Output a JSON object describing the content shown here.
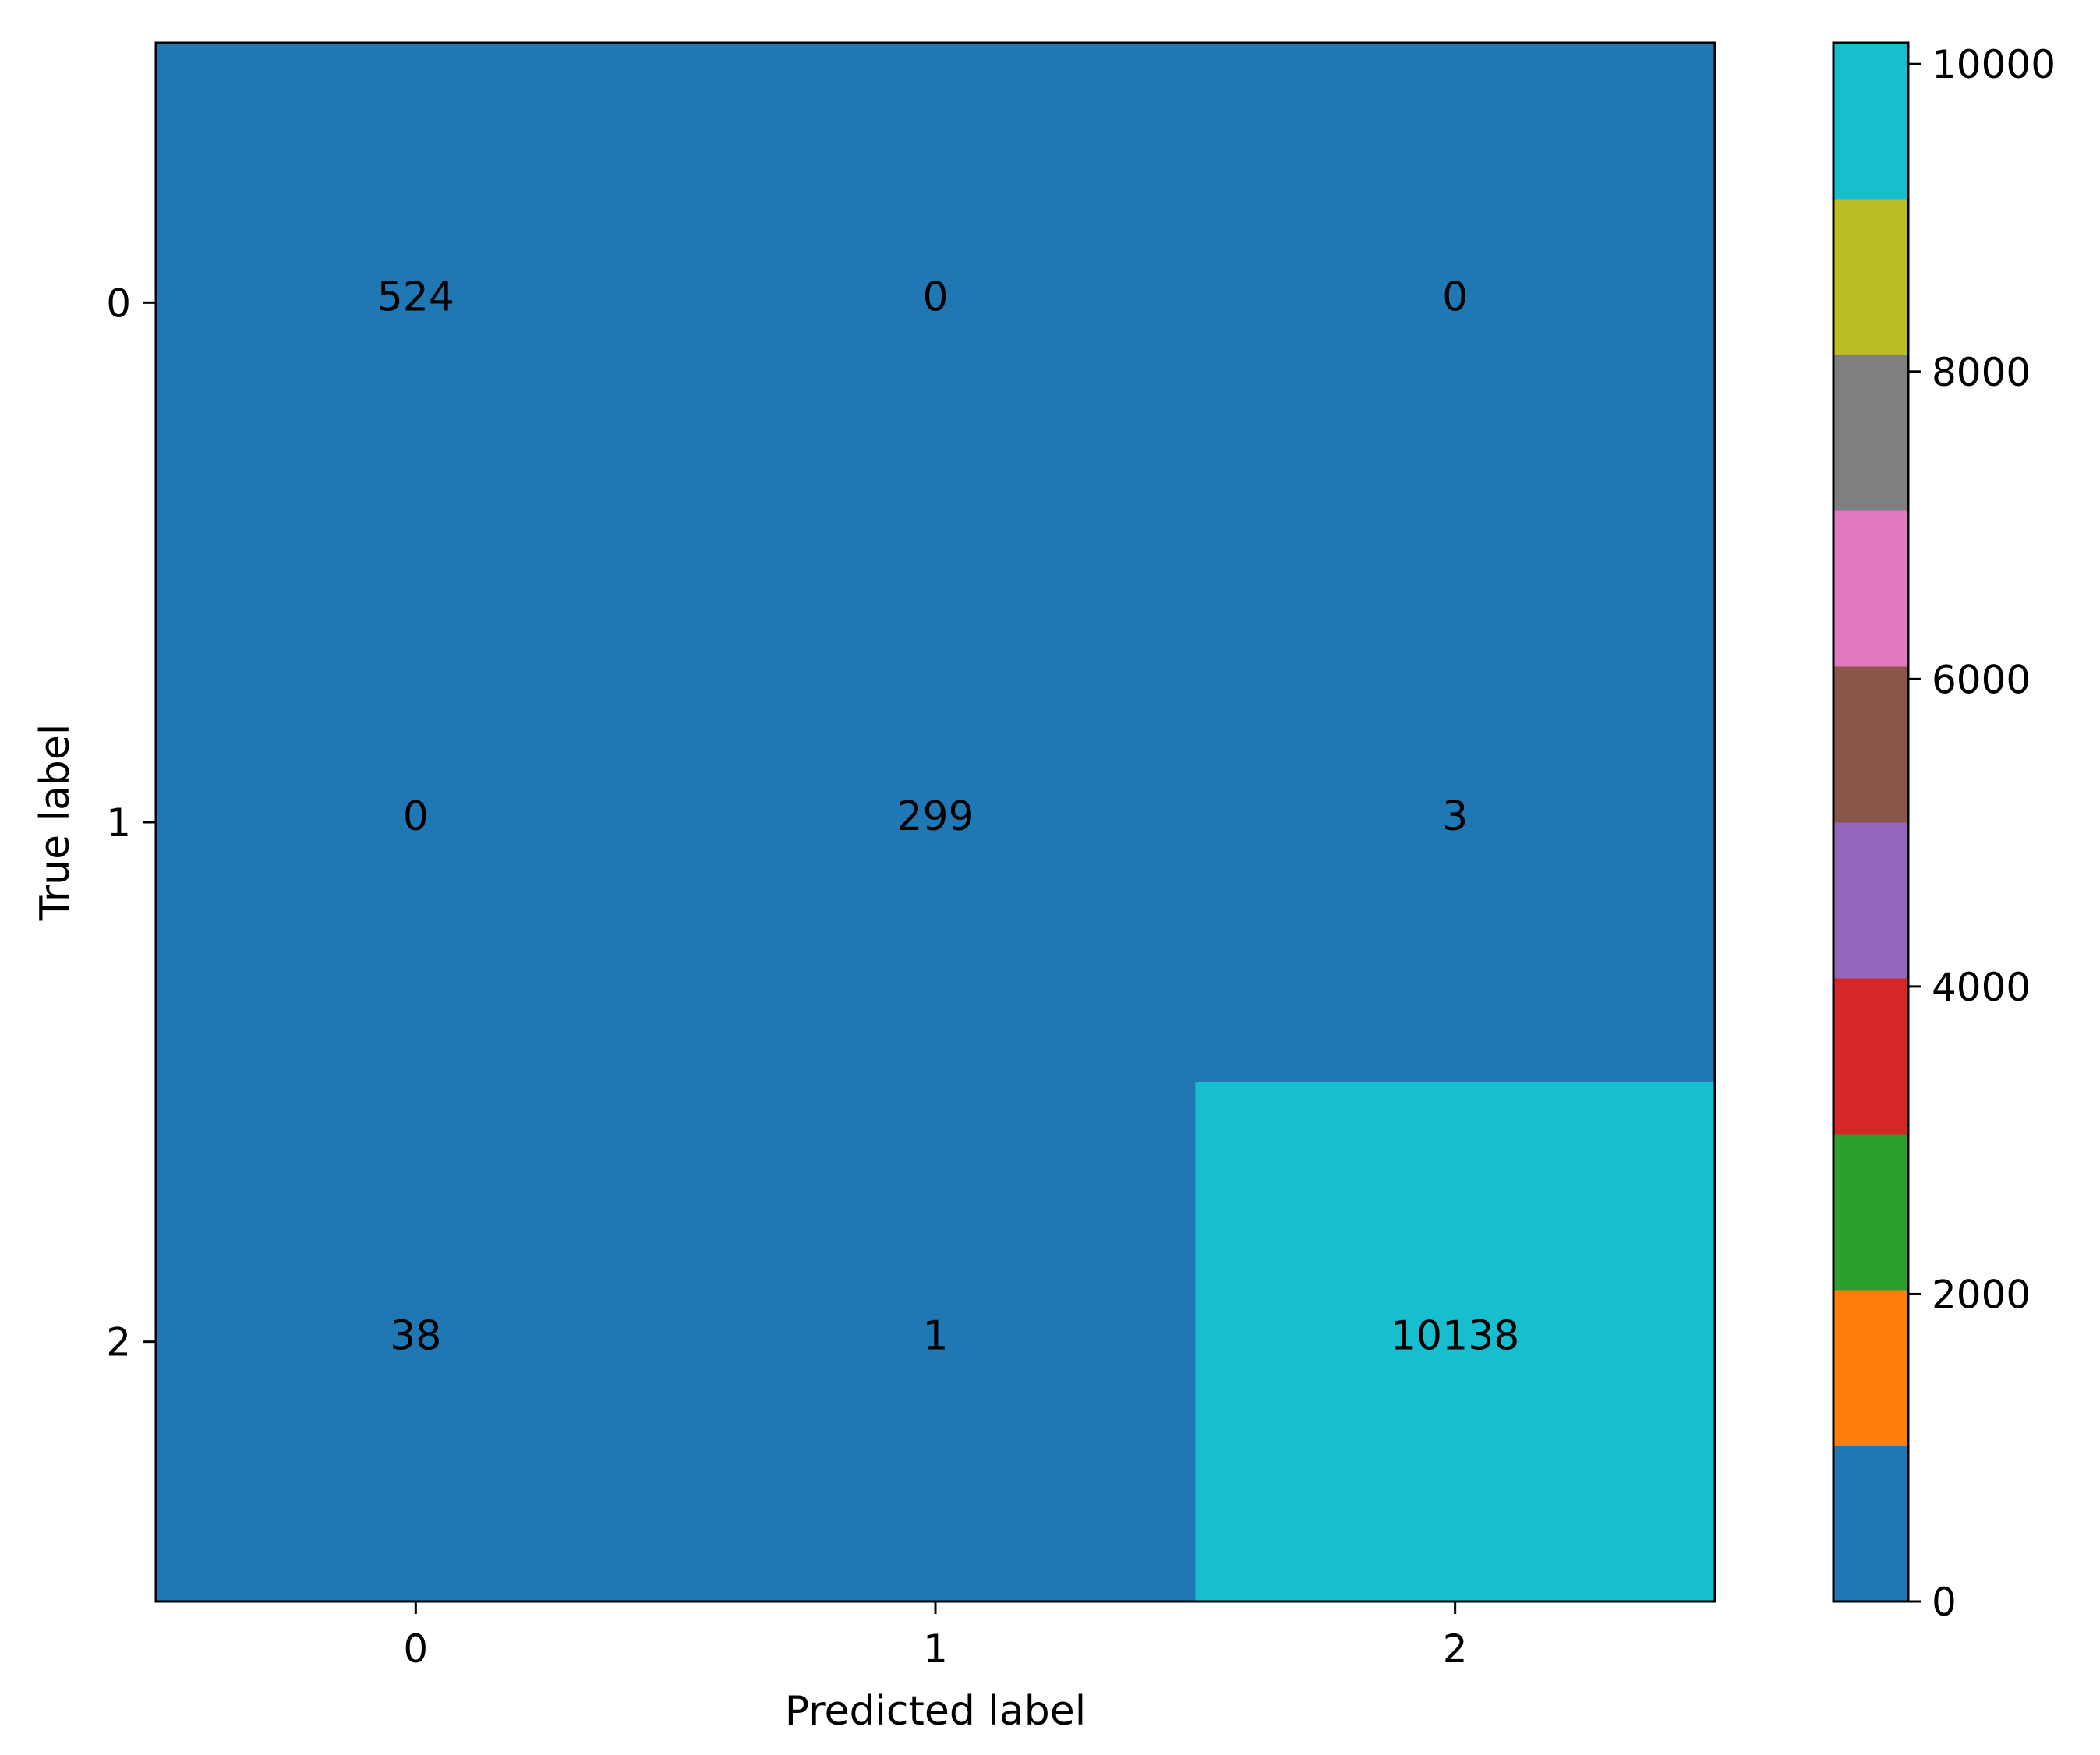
{
  "chart_data": {
    "type": "heatmap",
    "title": "",
    "xlabel": "Predicted label",
    "ylabel": "True label",
    "x_categories": [
      "0",
      "1",
      "2"
    ],
    "y_categories": [
      "0",
      "1",
      "2"
    ],
    "matrix": [
      [
        524,
        0,
        0
      ],
      [
        0,
        299,
        3
      ],
      [
        38,
        1,
        10138
      ]
    ],
    "matrix_labels": [
      [
        "524",
        "0",
        "0"
      ],
      [
        "0",
        "299",
        "3"
      ],
      [
        "38",
        "1",
        "10138"
      ]
    ],
    "colorbar": {
      "min": 0,
      "max": 10138,
      "ticks": [
        0,
        2000,
        4000,
        6000,
        8000,
        10000
      ],
      "tick_labels": [
        "0",
        "2000",
        "4000",
        "6000",
        "8000",
        "10000"
      ],
      "colors": [
        "#1f77b4",
        "#ff7f0e",
        "#2ca02c",
        "#d62728",
        "#9467bd",
        "#8c564b",
        "#e377c2",
        "#7f7f7f",
        "#bcbd22",
        "#17becf"
      ]
    },
    "grid": false
  }
}
